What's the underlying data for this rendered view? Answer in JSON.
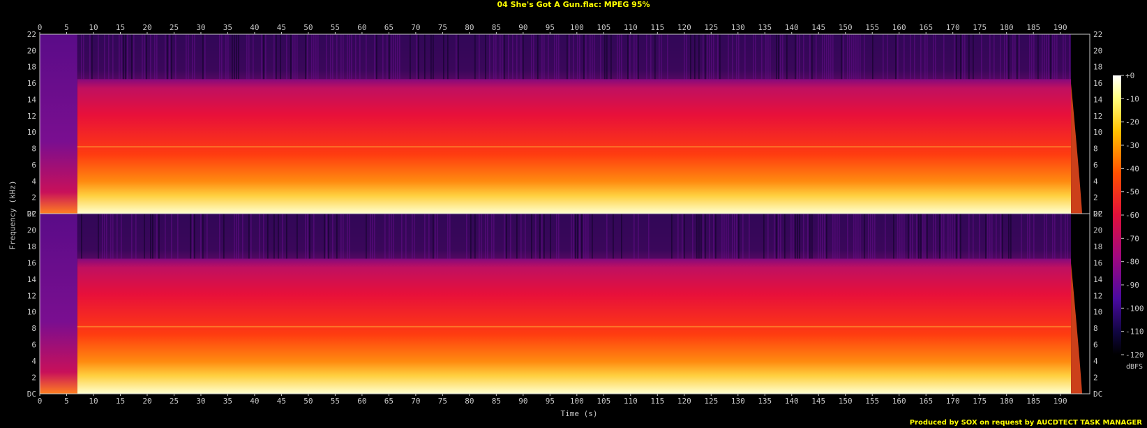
{
  "title": "04 She's Got A Gun.flac: MPEG 95%",
  "footer": "Produced by SOX on request by AUCDTECT TASK MANAGER",
  "chart_data": {
    "type": "heatmap",
    "title": "04 She's Got A Gun.flac: MPEG 95%",
    "xlabel": "Time (s)",
    "ylabel": "Frequency (kHz)",
    "xlim": [
      0,
      195.5
    ],
    "ylim": [
      0,
      22
    ],
    "x_ticks": [
      "0",
      "5",
      "10",
      "15",
      "20",
      "25",
      "30",
      "35",
      "40",
      "45",
      "50",
      "55",
      "60",
      "65",
      "70",
      "75",
      "80",
      "85",
      "90",
      "95",
      "100",
      "105",
      "110",
      "115",
      "120",
      "125",
      "130",
      "135",
      "140",
      "145",
      "150",
      "155",
      "160",
      "165",
      "170",
      "175",
      "180",
      "185",
      "190"
    ],
    "y_ticks": [
      "DC",
      "2",
      "4",
      "6",
      "8",
      "10",
      "12",
      "14",
      "16",
      "18",
      "20",
      "22"
    ],
    "channels": 2,
    "colorbar": {
      "unit": "dBFS",
      "ticks": [
        "+0",
        "-10",
        "-20",
        "-30",
        "-40",
        "-50",
        "-60",
        "-70",
        "-80",
        "-90",
        "-100",
        "-110",
        "-120"
      ],
      "range": [
        -120,
        0
      ]
    },
    "content_cutoff_khz": 16.5,
    "active_interval_s": [
      7,
      192
    ]
  },
  "colors": {
    "background": "#000000",
    "text": "#c8c8c8",
    "title": "#ffff00",
    "hot": "#ffffc0",
    "mid": "#ff3c00",
    "cool": "#c00080",
    "cold": "#300050"
  }
}
